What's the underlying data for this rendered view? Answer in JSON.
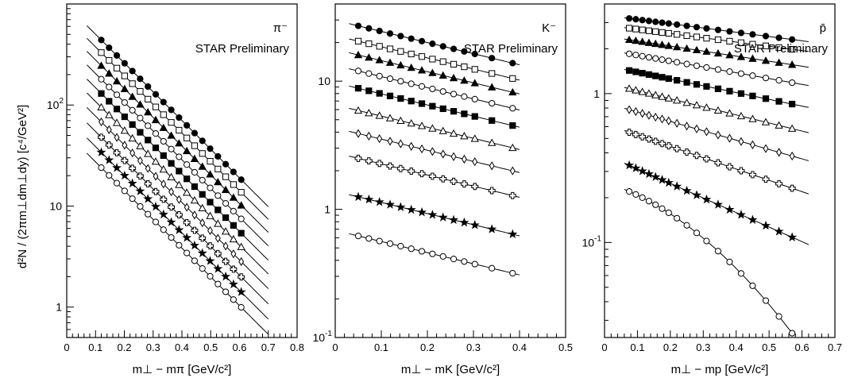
{
  "figure": {
    "ylabel": "d²N / (2πm⊥dm⊥dy)    [c⁴/GeV²]"
  },
  "chart_data": [
    {
      "type": "scatter",
      "particle": "π⁻",
      "watermark": "STAR Preliminary",
      "xlabel": "m⊥ − mπ    [GeV/c²]",
      "xlim": [
        0,
        0.8
      ],
      "ylim": [
        0.5,
        1000
      ],
      "yscale": "log",
      "xticks": [
        {
          "v": 0,
          "label": "0"
        },
        {
          "v": 0.1,
          "label": "0.1"
        },
        {
          "v": 0.2,
          "label": "0.2"
        },
        {
          "v": 0.3,
          "label": "0.3"
        },
        {
          "v": 0.4,
          "label": "0.4"
        },
        {
          "v": 0.5,
          "label": "0.5"
        },
        {
          "v": 0.6,
          "label": "0.6"
        },
        {
          "v": 0.7,
          "label": "0.7"
        },
        {
          "v": 0.8,
          "label": "0.8"
        }
      ],
      "yticks": [
        {
          "v": 1,
          "base": "1",
          "exp": ""
        },
        {
          "v": 10,
          "base": "10",
          "exp": ""
        },
        {
          "v": 100,
          "base": "10",
          "exp": "2"
        }
      ],
      "x": [
        0.12,
        0.147,
        0.174,
        0.201,
        0.228,
        0.255,
        0.282,
        0.309,
        0.336,
        0.363,
        0.39,
        0.417,
        0.444,
        0.471,
        0.498,
        0.525,
        0.552,
        0.579,
        0.606
      ],
      "fit_x": [
        0.07,
        0.7
      ],
      "series": [
        {
          "marker": "filled-circle",
          "y0": 440,
          "slope": 6.55,
          "curv": 0
        },
        {
          "marker": "open-square",
          "y0": 330,
          "slope": 6.55,
          "curv": 0
        },
        {
          "marker": "filled-triangle",
          "y0": 245,
          "slope": 6.55,
          "curv": 0
        },
        {
          "marker": "open-circle",
          "y0": 180,
          "slope": 6.55,
          "curv": 0
        },
        {
          "marker": "filled-square",
          "y0": 130,
          "slope": 6.55,
          "curv": 0
        },
        {
          "marker": "open-triangle",
          "y0": 95,
          "slope": 6.55,
          "curv": 0
        },
        {
          "marker": "open-diamond",
          "y0": 68,
          "slope": 6.55,
          "curv": 0
        },
        {
          "marker": "open-cross",
          "y0": 48,
          "slope": 6.55,
          "curv": 0
        },
        {
          "marker": "filled-star",
          "y0": 34,
          "slope": 6.55,
          "curv": 0
        },
        {
          "marker": "open-circle",
          "y0": 24,
          "slope": 6.55,
          "curv": 0
        }
      ]
    },
    {
      "type": "scatter",
      "particle": "K⁻",
      "watermark": "STAR Preliminary",
      "xlabel": "m⊥ − mK    [GeV/c²]",
      "xlim": [
        0,
        0.5
      ],
      "ylim": [
        0.1,
        40
      ],
      "yscale": "log",
      "xticks": [
        {
          "v": 0,
          "label": "0"
        },
        {
          "v": 0.1,
          "label": "0.1"
        },
        {
          "v": 0.2,
          "label": "0.2"
        },
        {
          "v": 0.3,
          "label": "0.3"
        },
        {
          "v": 0.4,
          "label": "0.4"
        },
        {
          "v": 0.5,
          "label": "0.5"
        }
      ],
      "yticks": [
        {
          "v": 0.1,
          "base": "10",
          "exp": "-1"
        },
        {
          "v": 1,
          "base": "1",
          "exp": ""
        },
        {
          "v": 10,
          "base": "10",
          "exp": ""
        }
      ],
      "x": [
        0.05,
        0.073,
        0.096,
        0.119,
        0.142,
        0.165,
        0.188,
        0.211,
        0.234,
        0.257,
        0.28,
        0.303,
        0.34,
        0.385
      ],
      "fit_x": [
        0.03,
        0.4
      ],
      "series": [
        {
          "marker": "filled-circle",
          "y0": 27,
          "slope": 2.0,
          "curv": 0
        },
        {
          "marker": "open-square",
          "y0": 20.5,
          "slope": 2.0,
          "curv": 0
        },
        {
          "marker": "filled-triangle",
          "y0": 16,
          "slope": 2.0,
          "curv": 0
        },
        {
          "marker": "open-circle",
          "y0": 12,
          "slope": 2.0,
          "curv": 0
        },
        {
          "marker": "filled-square",
          "y0": 8.8,
          "slope": 2.0,
          "curv": 0
        },
        {
          "marker": "open-triangle",
          "y0": 5.9,
          "slope": 2.0,
          "curv": 0
        },
        {
          "marker": "open-diamond",
          "y0": 3.9,
          "slope": 2.0,
          "curv": 0
        },
        {
          "marker": "open-cross",
          "y0": 2.5,
          "slope": 2.0,
          "curv": 0
        },
        {
          "marker": "filled-star",
          "y0": 1.25,
          "slope": 2.0,
          "curv": 0
        },
        {
          "marker": "open-circle",
          "y0": 0.62,
          "slope": 2.0,
          "curv": 0
        }
      ]
    },
    {
      "type": "scatter",
      "particle": "p̄",
      "watermark": "STAR Preliminary",
      "xlabel": "m⊥ − mp    [GeV/c²]",
      "xlim": [
        0,
        0.7
      ],
      "ylim": [
        0.023,
        4
      ],
      "yscale": "log",
      "xticks": [
        {
          "v": 0,
          "label": "0"
        },
        {
          "v": 0.1,
          "label": "0.1"
        },
        {
          "v": 0.2,
          "label": "0.2"
        },
        {
          "v": 0.3,
          "label": "0.3"
        },
        {
          "v": 0.4,
          "label": "0.4"
        },
        {
          "v": 0.5,
          "label": "0.5"
        },
        {
          "v": 0.6,
          "label": "0.6"
        },
        {
          "v": 0.7,
          "label": "0.7"
        }
      ],
      "yticks": [
        {
          "v": 0.1,
          "base": "10",
          "exp": "-1"
        },
        {
          "v": 1,
          "base": "1",
          "exp": ""
        }
      ],
      "x": [
        0.075,
        0.095,
        0.115,
        0.135,
        0.155,
        0.175,
        0.195,
        0.22,
        0.25,
        0.28,
        0.31,
        0.345,
        0.38,
        0.415,
        0.45,
        0.49,
        0.53,
        0.57
      ],
      "fit_x": [
        0.06,
        0.62
      ],
      "series": [
        {
          "marker": "filled-circle",
          "y0": 3.2,
          "slope": 0.66,
          "curv": 0
        },
        {
          "marker": "open-square",
          "y0": 2.75,
          "slope": 0.66,
          "curv": 0
        },
        {
          "marker": "filled-triangle",
          "y0": 2.3,
          "slope": 0.78,
          "curv": 0
        },
        {
          "marker": "open-circle",
          "y0": 1.85,
          "slope": 0.9,
          "curv": 0
        },
        {
          "marker": "filled-square",
          "y0": 1.43,
          "slope": 1.05,
          "curv": 0
        },
        {
          "marker": "open-triangle",
          "y0": 1.08,
          "slope": 1.25,
          "curv": 0
        },
        {
          "marker": "open-diamond",
          "y0": 0.78,
          "slope": 1.45,
          "curv": 0
        },
        {
          "marker": "open-cross",
          "y0": 0.55,
          "slope": 1.75,
          "curv": 0
        },
        {
          "marker": "filled-star",
          "y0": 0.33,
          "slope": 2.25,
          "curv": 0
        },
        {
          "marker": "open-circle",
          "y0": 0.22,
          "slope": 2.2,
          "curv": 4.5
        }
      ]
    }
  ]
}
